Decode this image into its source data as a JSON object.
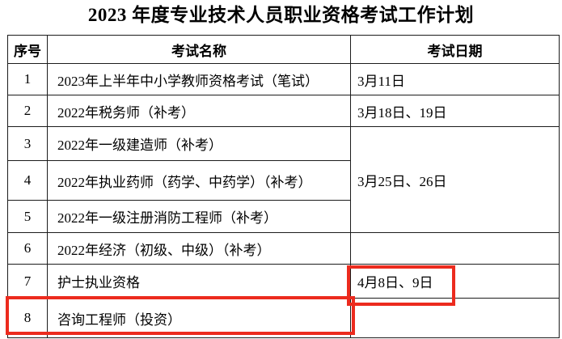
{
  "title": "2023 年度专业技术人员职业资格考试工作计划",
  "table": {
    "headers": [
      "序号",
      "考试名称",
      "考试日期"
    ],
    "rows": [
      {
        "no": "1",
        "name": "2023年上半年中小学教师资格考试（笔试）",
        "date": "3月11日"
      },
      {
        "no": "2",
        "name": "2022年税务师（补考）",
        "date": "3月18日、19日"
      },
      {
        "no": "3",
        "name": "2022年一级建造师（补考）",
        "date": "3月25日、26日",
        "date_rowspan": 3
      },
      {
        "no": "4",
        "name": "2022年执业药师（药学、中药学）（补考）",
        "date": null
      },
      {
        "no": "5",
        "name": "2022年一级注册消防工程师（补考）",
        "date": null
      },
      {
        "no": "6",
        "name": "2022年经济（初级、中级）（补考）",
        "date": ""
      },
      {
        "no": "7",
        "name": "护士执业资格",
        "date": "4月8日、9日",
        "date_highlighted": true
      },
      {
        "no": "8",
        "name": "咨询工程师（投资）",
        "date": "",
        "row_highlighted": true
      }
    ]
  },
  "annotations": {
    "highlight_color": "#ec2b1e",
    "highlighted_date": "4月8日、9日",
    "highlighted_row_name": "咨询工程师（投资）"
  }
}
